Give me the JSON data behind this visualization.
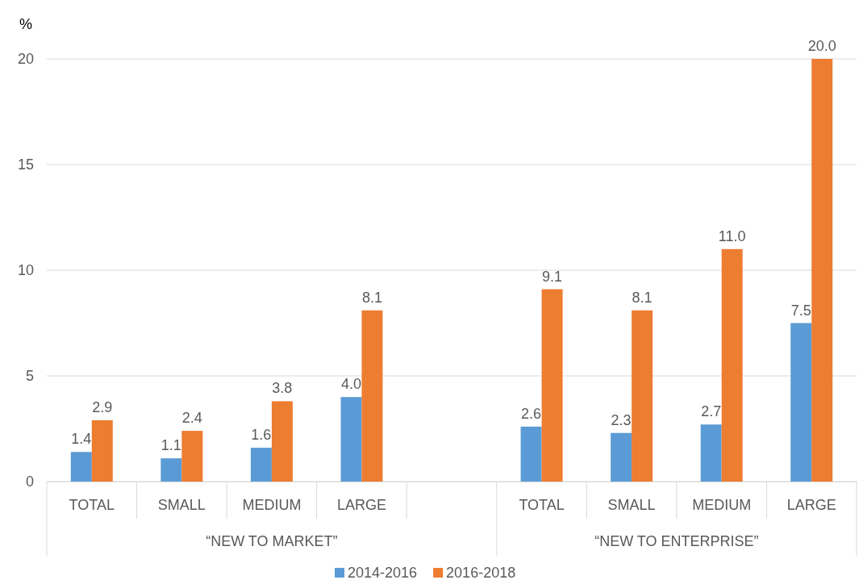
{
  "chart_data": {
    "type": "bar",
    "ylabel": "%",
    "categories": [
      "TOTAL",
      "SMALL",
      "MEDIUM",
      "LARGE",
      null,
      "TOTAL",
      "SMALL",
      "MEDIUM",
      "LARGE"
    ],
    "series": [
      {
        "name": "2014-2016",
        "color": "#5b9bd5",
        "values": [
          1.4,
          1.1,
          1.6,
          4.0,
          null,
          2.6,
          2.3,
          2.7,
          7.5
        ],
        "value_labels": [
          "1.4",
          "1.1",
          "1.6",
          "4.0",
          null,
          "2.6",
          "2.3",
          "2.7",
          "7.5"
        ]
      },
      {
        "name": "2016-2018",
        "color": "#ed7d31",
        "values": [
          2.9,
          2.4,
          3.8,
          8.1,
          null,
          9.1,
          8.1,
          11.0,
          20.0
        ],
        "value_labels": [
          "2.9",
          "2.4",
          "3.8",
          "8.1",
          null,
          "9.1",
          "8.1",
          "11.0",
          "20.0"
        ]
      }
    ],
    "ylim": [
      0,
      20
    ],
    "yticks": [
      0,
      5,
      10,
      15,
      20
    ],
    "grid": "y",
    "legend": "bottom",
    "annotations": [
      "“NEW TO MARKET”",
      "“NEW TO ENTERPRISE”"
    ]
  }
}
